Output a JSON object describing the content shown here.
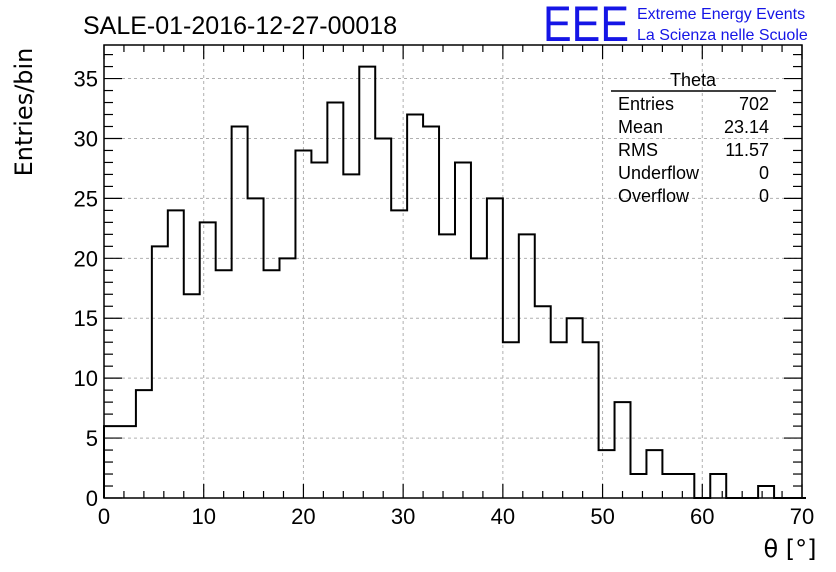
{
  "chart_data": {
    "type": "histogram",
    "title": "SALE-01-2016-12-27-00018",
    "xlabel": "θ [°]",
    "ylabel": "Entries/bin",
    "xlim": [
      0,
      70
    ],
    "ylim": [
      0,
      37.8
    ],
    "bin_width": 1.6,
    "x_ticks": [
      0,
      10,
      20,
      30,
      40,
      50,
      60,
      70
    ],
    "y_ticks": [
      0,
      5,
      10,
      15,
      20,
      25,
      30,
      35
    ],
    "grid": true,
    "values": [
      6,
      6,
      9,
      21,
      24,
      17,
      23,
      19,
      31,
      25,
      19,
      20,
      29,
      28,
      33,
      27,
      36,
      30,
      24,
      32,
      31,
      22,
      28,
      20,
      25,
      13,
      22,
      16,
      13,
      15,
      13,
      4,
      8,
      2,
      4,
      2,
      2,
      0,
      2,
      0,
      0,
      1,
      0,
      0
    ],
    "line_color": "#000000",
    "stats_box": {
      "title": "Theta",
      "rows": [
        {
          "label": "Entries",
          "value": "702"
        },
        {
          "label": "Mean",
          "value": "23.14"
        },
        {
          "label": "RMS",
          "value": "11.57"
        },
        {
          "label": "Underflow",
          "value": "0"
        },
        {
          "label": "Overflow",
          "value": "0"
        }
      ]
    }
  },
  "logo": {
    "mark": "EEE",
    "line1": "Extreme Energy Events",
    "line2": "La Scienza nelle Scuole",
    "color": "#1515e6"
  }
}
